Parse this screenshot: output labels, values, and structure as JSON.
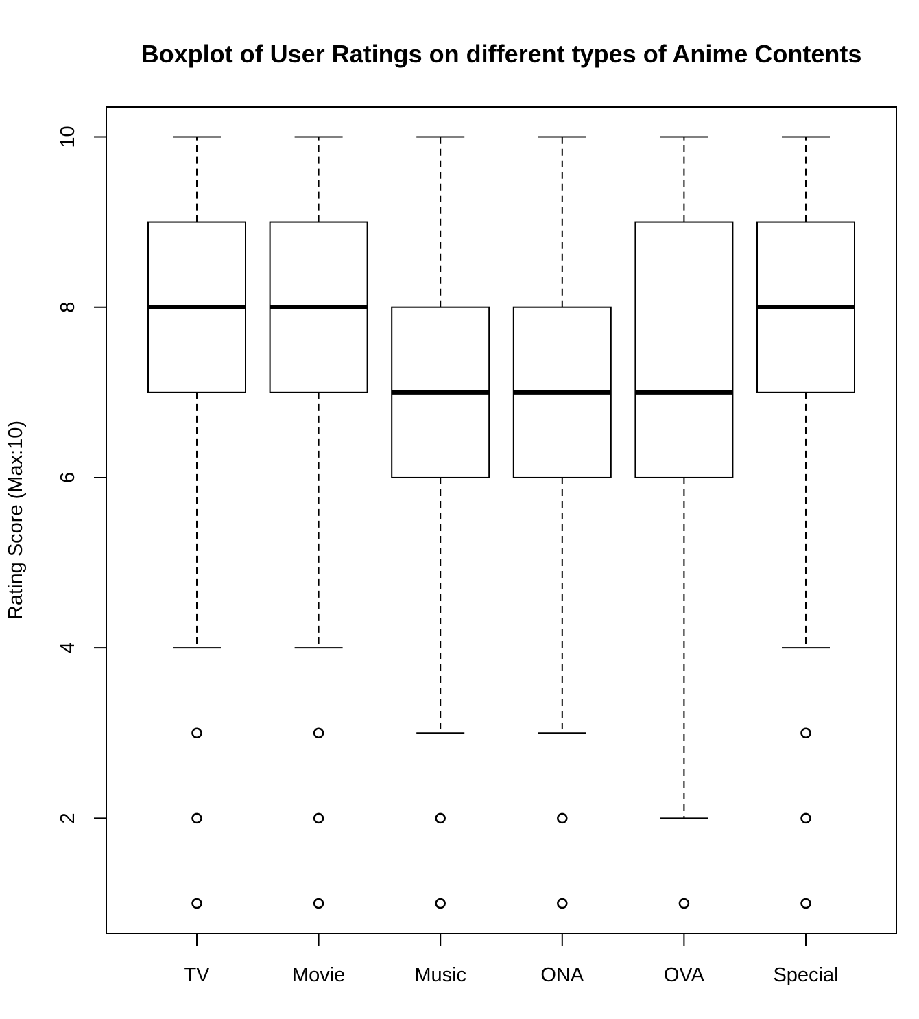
{
  "chart_data": {
    "type": "box",
    "title": "Boxplot of User Ratings on different types of Anime Contents",
    "xlabel": "",
    "ylabel": "Rating Score (Max:10)",
    "ylim": [
      0.65,
      10.35
    ],
    "yticks": [
      2,
      4,
      6,
      8,
      10
    ],
    "grid": false,
    "categories": [
      "TV",
      "Movie",
      "Music",
      "ONA",
      "OVA",
      "Special"
    ],
    "boxes": [
      {
        "category": "TV",
        "whisker_low": 4,
        "q1": 7,
        "median": 8,
        "q3": 9,
        "whisker_high": 10,
        "outliers": [
          3,
          2,
          1
        ]
      },
      {
        "category": "Movie",
        "whisker_low": 4,
        "q1": 7,
        "median": 8,
        "q3": 9,
        "whisker_high": 10,
        "outliers": [
          3,
          2,
          1
        ]
      },
      {
        "category": "Music",
        "whisker_low": 3,
        "q1": 6,
        "median": 7,
        "q3": 8,
        "whisker_high": 10,
        "outliers": [
          2,
          1
        ]
      },
      {
        "category": "ONA",
        "whisker_low": 3,
        "q1": 6,
        "median": 7,
        "q3": 8,
        "whisker_high": 10,
        "outliers": [
          2,
          1
        ]
      },
      {
        "category": "OVA",
        "whisker_low": 2,
        "q1": 6,
        "median": 7,
        "q3": 9,
        "whisker_high": 10,
        "outliers": [
          1
        ]
      },
      {
        "category": "Special",
        "whisker_low": 4,
        "q1": 7,
        "median": 8,
        "q3": 9,
        "whisker_high": 10,
        "outliers": [
          3,
          2,
          1
        ]
      }
    ]
  }
}
